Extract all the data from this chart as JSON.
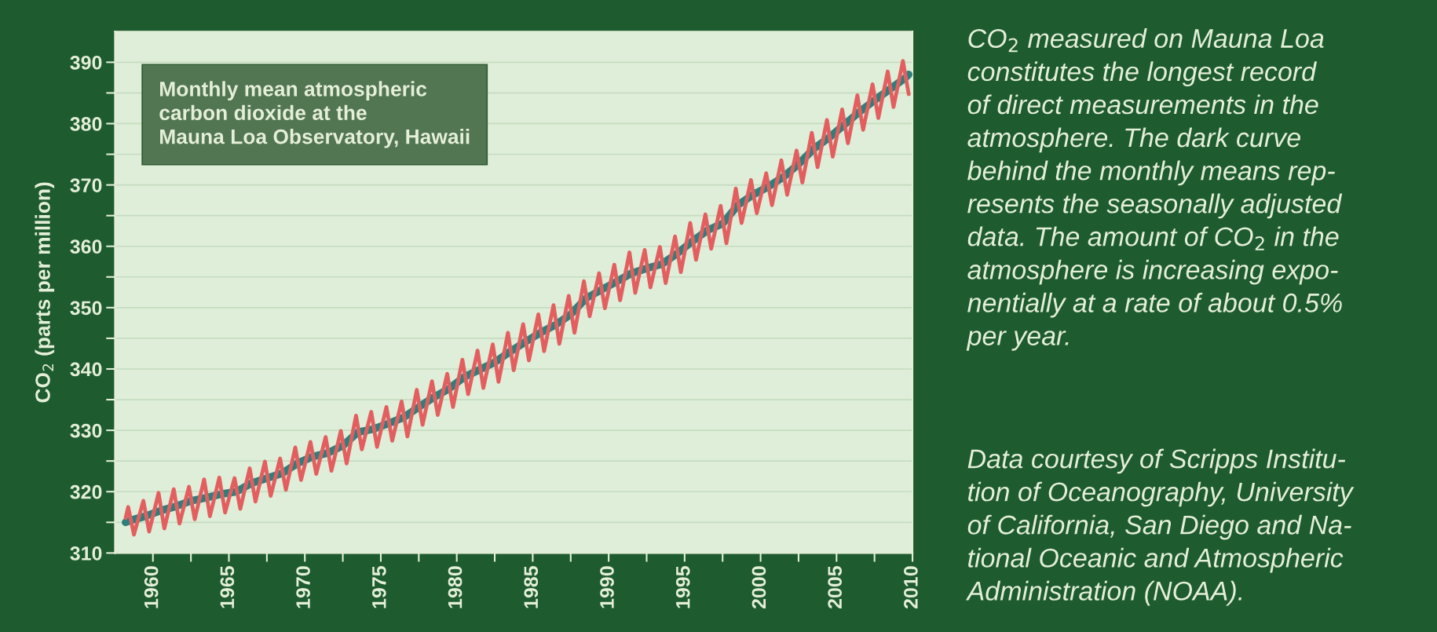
{
  "chart_data": {
    "type": "line",
    "title": "Monthly mean atmospheric\ncarbon dioxide at the\nMauna Loa Observatory, Hawaii",
    "ylabel": "CO$_{2}$ (parts per million)",
    "annotations": [
      "CO$_{2}$ measured on Mauna Loa\nconstitutes the longest record\nof direct measurements in the\natmosphere. The dark curve\nbehind the monthly means rep-\nresents the seasonally adjusted\ndata. The amount of CO$_{2}$ in the\natmosphere is increasing expo-\nnentially at a rate of about 0.5%\nper year.",
      "Data courtesy of Scripps Institu-\ntion of Oceanography, University\nof California, San Diego and Na-\ntional Oceanic and Atmospheric\nAdministration (NOAA)."
    ],
    "xlim": [
      1957.5,
      2010
    ],
    "xticks": [
      1960,
      {
        "value": 1962.5,
        "label": null
      },
      1965,
      {
        "value": 1967.5,
        "label": null
      },
      1970,
      {
        "value": 1972.5,
        "label": null
      },
      1975,
      {
        "value": 1977.5,
        "label": null
      },
      1980,
      {
        "value": 1982.5,
        "label": null
      },
      1985,
      {
        "value": 1987.5,
        "label": null
      },
      1990,
      {
        "value": 1992.5,
        "label": null
      },
      1995,
      {
        "value": 1997.5,
        "label": null
      },
      2000,
      {
        "value": 2002.5,
        "label": null
      },
      2005,
      {
        "value": 2007.5,
        "label": null
      },
      2010
    ],
    "ylim": [
      310,
      395
    ],
    "yticks": [
      310,
      {
        "value": 315,
        "label": null
      },
      320,
      {
        "value": 325,
        "label": null
      },
      330,
      {
        "value": 335,
        "label": null
      },
      340,
      {
        "value": 345,
        "label": null
      },
      350,
      {
        "value": 355,
        "label": null
      },
      360,
      {
        "value": 365,
        "label": null
      },
      370,
      {
        "value": 375,
        "label": null
      },
      380,
      {
        "value": 385,
        "label": null
      },
      390
    ],
    "grid": "y",
    "line_style": "solid",
    "series": [
      {
        "color": "#2e7f7c",
        "x": [
          1958.2,
          1958.5,
          1959.5,
          1960.5,
          1961.5,
          1962.5,
          1963.5,
          1964.5,
          1965.5,
          1966.5,
          1967.5,
          1968.5,
          1969.5,
          1970.5,
          1971.5,
          1972.5,
          1973.5,
          1974.5,
          1975.5,
          1976.5,
          1977.5,
          1978.5,
          1979.5,
          1980.5,
          1981.5,
          1982.5,
          1983.5,
          1984.5,
          1985.5,
          1986.5,
          1987.5,
          1988.5,
          1989.5,
          1990.5,
          1991.5,
          1992.5,
          1993.5,
          1994.5,
          1995.5,
          1996.5,
          1997.5,
          1998.5,
          1999.5,
          2000.5,
          2001.5,
          2002.5,
          2003.5,
          2004.5,
          2005.5,
          2006.5,
          2007.5,
          2008.5,
          2009.5,
          2009.75
        ],
        "values": [
          315.0,
          315.3,
          316.0,
          316.9,
          317.6,
          318.5,
          319.0,
          319.6,
          320.0,
          321.4,
          322.2,
          323.0,
          324.6,
          325.7,
          326.3,
          327.5,
          329.7,
          330.2,
          331.1,
          332.1,
          333.8,
          335.4,
          336.8,
          338.7,
          339.9,
          341.1,
          342.8,
          344.4,
          345.9,
          347.2,
          348.9,
          351.5,
          352.9,
          354.2,
          355.6,
          356.4,
          357.1,
          358.8,
          360.8,
          362.6,
          363.7,
          366.7,
          368.4,
          369.7,
          371.3,
          373.4,
          375.9,
          377.7,
          379.8,
          381.9,
          383.8,
          385.6,
          387.4,
          388.0
        ]
      },
      {
        "color": "#e35f5f",
        "x": [
          1958.2,
          1958.37,
          1958.75,
          1959.37,
          1959.75,
          1960.37,
          1960.75,
          1961.37,
          1961.75,
          1962.37,
          1962.75,
          1963.37,
          1963.75,
          1964.37,
          1964.75,
          1965.37,
          1965.75,
          1966.37,
          1966.75,
          1967.37,
          1967.75,
          1968.37,
          1968.75,
          1969.37,
          1969.75,
          1970.37,
          1970.75,
          1971.37,
          1971.75,
          1972.37,
          1972.75,
          1973.37,
          1973.75,
          1974.37,
          1974.75,
          1975.37,
          1975.75,
          1976.37,
          1976.75,
          1977.37,
          1977.75,
          1978.37,
          1978.75,
          1979.37,
          1979.75,
          1980.37,
          1980.75,
          1981.37,
          1981.75,
          1982.37,
          1982.75,
          1983.37,
          1983.75,
          1984.37,
          1984.75,
          1985.37,
          1985.75,
          1986.37,
          1986.75,
          1987.37,
          1987.75,
          1988.37,
          1988.75,
          1989.37,
          1989.75,
          1990.37,
          1990.75,
          1991.37,
          1991.75,
          1992.37,
          1992.75,
          1993.37,
          1993.75,
          1994.37,
          1994.75,
          1995.37,
          1995.75,
          1996.37,
          1996.75,
          1997.37,
          1997.75,
          1998.37,
          1998.75,
          1999.37,
          1999.75,
          2000.37,
          2000.75,
          2001.37,
          2001.75,
          2002.37,
          2002.75,
          2003.37,
          2003.75,
          2004.37,
          2004.75,
          2005.37,
          2005.75,
          2006.37,
          2006.75,
          2007.37,
          2007.75,
          2008.37,
          2008.75,
          2009.37,
          2009.75
        ],
        "values": [
          315.7,
          317.5,
          313.0,
          318.5,
          313.5,
          319.8,
          314.0,
          320.4,
          314.8,
          320.8,
          315.5,
          322.0,
          316.0,
          322.3,
          316.6,
          322.2,
          317.2,
          323.8,
          318.4,
          324.9,
          319.3,
          325.4,
          320.3,
          327.2,
          321.9,
          328.1,
          322.9,
          328.9,
          323.4,
          329.9,
          324.6,
          332.4,
          326.9,
          333.0,
          327.3,
          333.8,
          328.3,
          334.7,
          329.0,
          336.6,
          330.9,
          338.0,
          332.5,
          339.2,
          333.8,
          341.5,
          335.9,
          343.0,
          336.9,
          344.0,
          337.9,
          345.9,
          339.8,
          347.3,
          341.4,
          348.9,
          342.9,
          350.4,
          344.1,
          351.9,
          345.9,
          354.3,
          348.6,
          355.6,
          349.9,
          357.0,
          351.2,
          359.0,
          352.4,
          359.4,
          353.3,
          359.9,
          354.0,
          361.6,
          355.8,
          363.8,
          357.8,
          365.2,
          359.6,
          366.6,
          360.5,
          369.4,
          363.8,
          370.8,
          365.4,
          371.9,
          366.7,
          374.0,
          368.4,
          375.6,
          370.4,
          378.5,
          372.9,
          380.6,
          374.6,
          382.3,
          376.8,
          384.6,
          379.0,
          386.4,
          380.9,
          388.5,
          382.7,
          390.2,
          384.8
        ]
      }
    ]
  }
}
